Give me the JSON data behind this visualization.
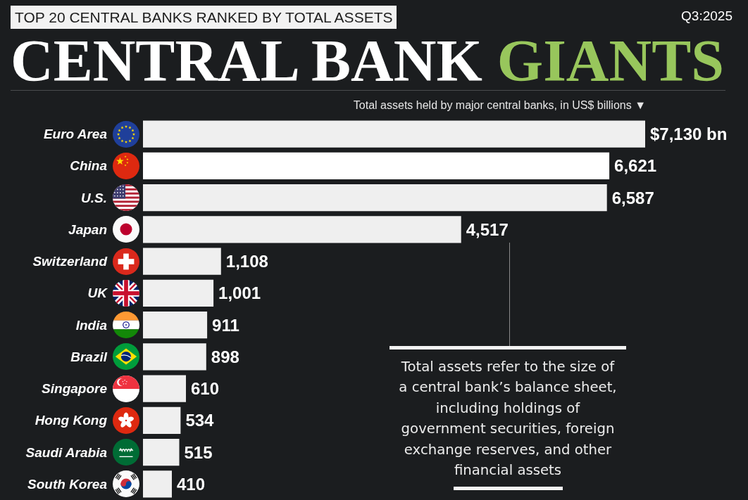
{
  "chart_data": {
    "type": "bar",
    "orientation": "horizontal",
    "title": "CENTRAL BANK GIANTS",
    "subtitle": "TOP 20 CENTRAL BANKS RANKED BY TOTAL ASSETS",
    "xlabel": "Total assets held by major central banks, in US$ billions ▼",
    "categories": [
      "Euro Area",
      "China",
      "U.S.",
      "Japan",
      "Switzerland",
      "UK",
      "India",
      "Brazil",
      "Singapore",
      "Hong Kong",
      "Saudi Arabia",
      "South Korea"
    ],
    "values": [
      7130,
      6621,
      6587,
      4517,
      1108,
      1001,
      911,
      898,
      610,
      534,
      515,
      410
    ],
    "colors": [
      "#efefef",
      "#ffffff",
      "#efefef",
      "#efefef",
      "#efefef",
      "#efefef",
      "#efefef",
      "#efefef",
      "#efefef",
      "#efefef",
      "#efefef",
      "#efefef"
    ],
    "value_labels": [
      "$7,130 bn",
      "6,621",
      "6,587",
      "4,517",
      "1,108",
      "1,001",
      "911",
      "898",
      "610",
      "534",
      "515",
      "410"
    ],
    "tick_labels": "y",
    "annotations": [
      "Q3:2025",
      "Total assets refer to the size of a central bank’s balance sheet, including holdings of government securities, foreign exchange reserves, and other financial assets"
    ]
  }
}
